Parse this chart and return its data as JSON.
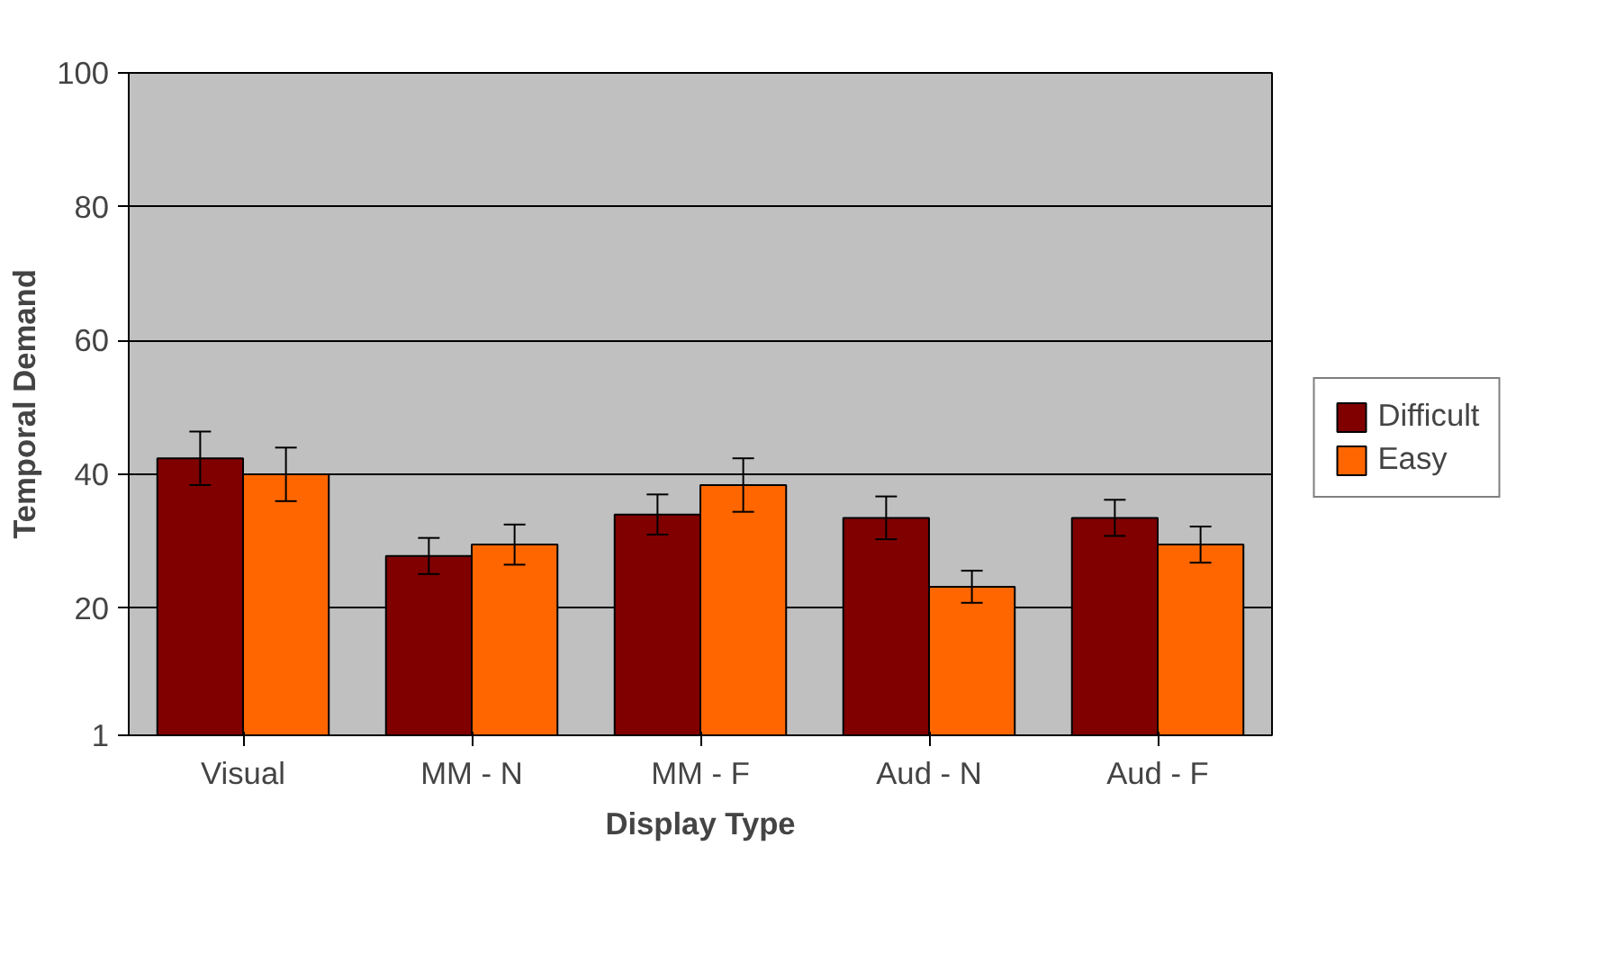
{
  "chart_data": {
    "type": "bar",
    "xlabel": "Display Type",
    "ylabel": "Temporal Demand",
    "categories": [
      "Visual",
      "MM - N",
      "MM - F",
      "Aud - N",
      "Aud - F"
    ],
    "series": [
      {
        "name": "Difficult",
        "color": "#800000",
        "values": [
          42.4,
          27.8,
          34,
          33.5,
          33.5
        ],
        "errors": [
          4,
          2.7,
          3,
          3.2,
          2.7
        ]
      },
      {
        "name": "Easy",
        "color": "#ff6600",
        "values": [
          40,
          29.5,
          38.4,
          23.2,
          29.5
        ],
        "errors": [
          4,
          3,
          4,
          2.4,
          2.7
        ]
      }
    ],
    "ylim": [
      1,
      100
    ],
    "yticks": [
      1,
      20,
      40,
      60,
      80,
      100
    ],
    "grid": "y",
    "legend": "right"
  }
}
